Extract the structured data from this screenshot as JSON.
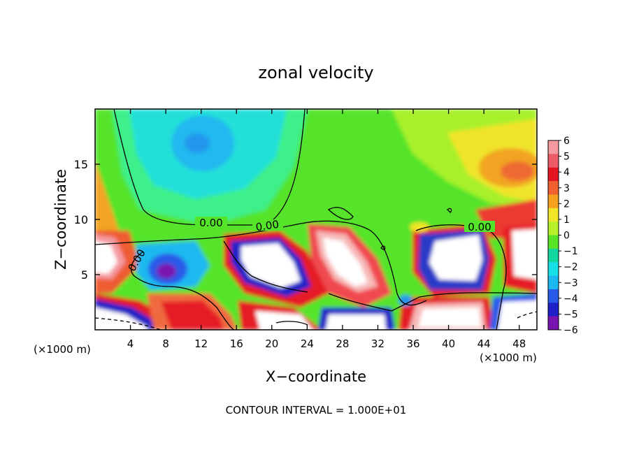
{
  "chart_data": {
    "type": "heatmap",
    "title": "zonal velocity",
    "xlabel": "X−coordinate",
    "ylabel": "Z−coordinate",
    "x_unit_left": "(×1000 m)",
    "x_unit_right": "(×1000 m)",
    "xlim": [
      0,
      50
    ],
    "ylim": [
      0,
      20
    ],
    "xticks": [
      4,
      8,
      12,
      16,
      20,
      24,
      28,
      32,
      36,
      40,
      44,
      48
    ],
    "yticks": [
      5,
      10,
      15
    ],
    "colorbar": {
      "ticks": [
        "6",
        "5",
        "4",
        "3",
        "2",
        "1",
        "0",
        "−1",
        "−2",
        "−3",
        "−4",
        "−5",
        "−6"
      ],
      "levels": [
        6,
        5,
        4,
        3,
        2,
        1,
        0,
        -1,
        -2,
        -3,
        -4,
        -5,
        -6
      ],
      "colors": [
        "#f49aa0",
        "#ee5c6a",
        "#e51422",
        "#f06030",
        "#f6a020",
        "#f2e628",
        "#b8f02a",
        "#5ae428",
        "#12d8a0",
        "#16e0e8",
        "#1eb8f0",
        "#2a5ae8",
        "#2020c8",
        "#7a14b0"
      ]
    },
    "contour_labels": [
      "0.00",
      "0.00",
      "0.00",
      "0.00"
    ],
    "footer": "CONTOUR INTERVAL = 1.000E+01",
    "grid": false,
    "legend": "colorbar-right"
  }
}
